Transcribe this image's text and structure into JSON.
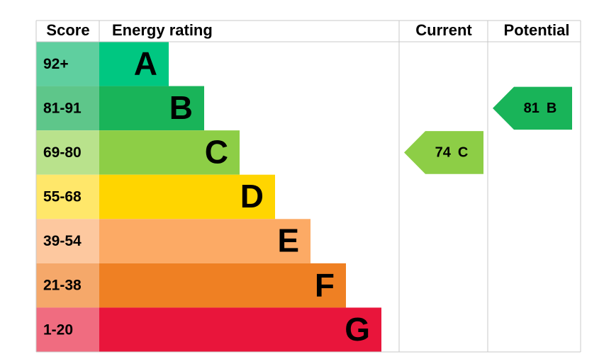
{
  "headers": {
    "score": "Score",
    "rating": "Energy rating",
    "current": "Current",
    "potential": "Potential"
  },
  "bands": [
    {
      "score": "92+",
      "letter": "A",
      "color": "#00c781",
      "score_color": "#5fcf9f"
    },
    {
      "score": "81-91",
      "letter": "B",
      "color": "#19b459",
      "score_color": "#5ec68a"
    },
    {
      "score": "69-80",
      "letter": "C",
      "color": "#8dce46",
      "score_color": "#b9e28c"
    },
    {
      "score": "55-68",
      "letter": "D",
      "color": "#ffd500",
      "score_color": "#ffe76a"
    },
    {
      "score": "39-54",
      "letter": "E",
      "color": "#fcaa65",
      "score_color": "#fdc89f"
    },
    {
      "score": "21-38",
      "letter": "F",
      "color": "#ef8023",
      "score_color": "#f5a86a"
    },
    {
      "score": "1-20",
      "letter": "G",
      "color": "#e9153b",
      "score_color": "#f06c80"
    }
  ],
  "current": {
    "value": 74,
    "letter": "C"
  },
  "potential": {
    "value": 81,
    "letter": "B"
  }
}
